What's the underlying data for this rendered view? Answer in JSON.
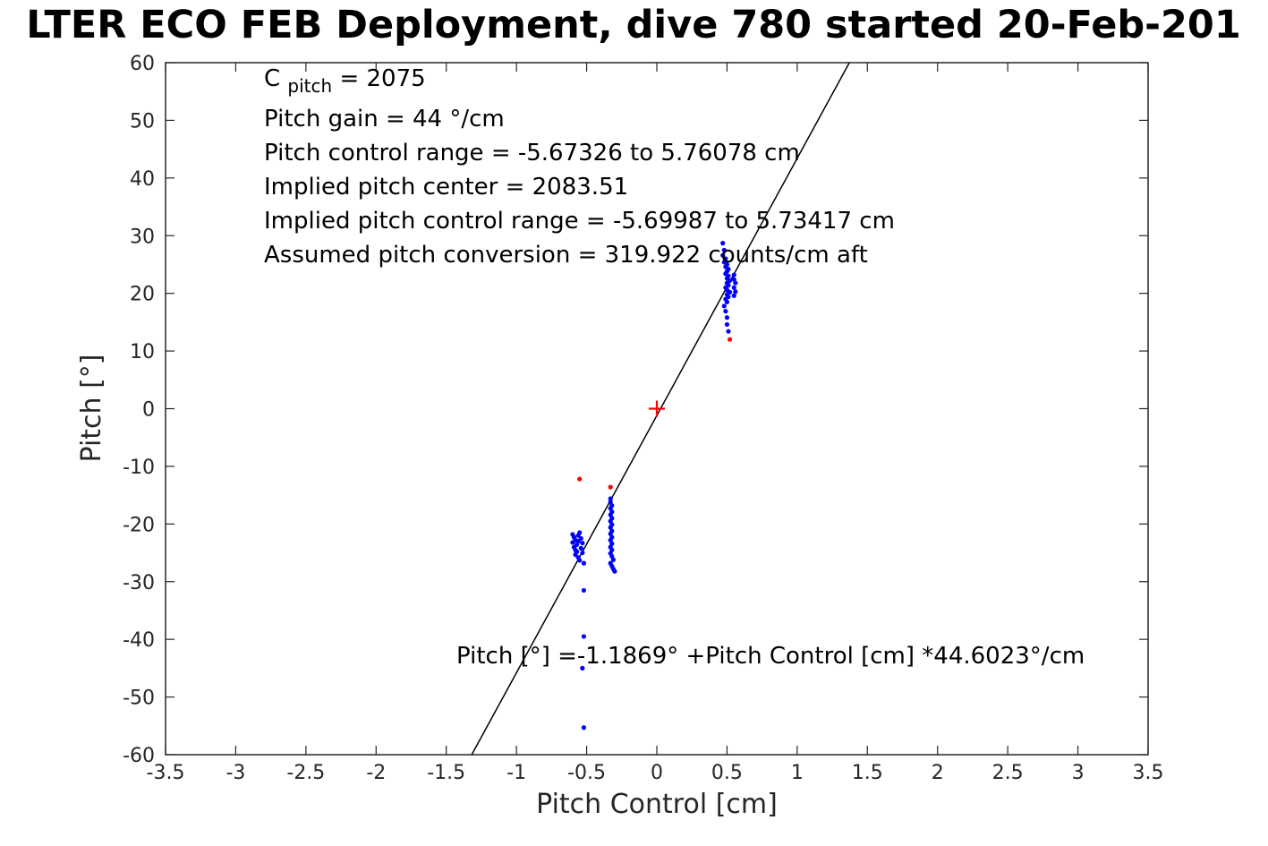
{
  "title": "LTER ECO FEB Deployment, dive 780 started 20-Feb-201",
  "annotations": {
    "cpitch_prefix": "C",
    "cpitch_sub": "pitch",
    "cpitch_rest": " = 2075",
    "lines": [
      "Pitch gain = 44 °/cm",
      "Pitch control range = -5.67326 to 5.76078 cm",
      "Implied pitch center = 2083.51",
      "Implied pitch control range = -5.69987 to 5.73417 cm",
      "Assumed pitch conversion = 319.922 counts/cm aft"
    ],
    "equation": "Pitch [°] =-1.1869° +Pitch Control [cm] *44.6023°/cm"
  },
  "colors": {
    "axis": "#262626",
    "fit_line": "#000000",
    "blue_marker": "#0000ff",
    "red_marker": "#ff0000"
  },
  "chart_data": {
    "type": "scatter",
    "title": "LTER ECO FEB Deployment, dive 780 started 20-Feb-201",
    "xlabel": "Pitch Control [cm]",
    "ylabel": "Pitch [°]",
    "xlim": [
      -3.5,
      3.5
    ],
    "ylim": [
      -60,
      60
    ],
    "grid": false,
    "xticks": [
      -3.5,
      -3,
      -2.5,
      -2,
      -1.5,
      -1,
      -0.5,
      0,
      0.5,
      1,
      1.5,
      2,
      2.5,
      3,
      3.5
    ],
    "xtick_labels": [
      "-3.5",
      "-3",
      "-2.5",
      "-2",
      "-1.5",
      "-1",
      "-0.5",
      "0",
      "0.5",
      "1",
      "1.5",
      "2",
      "2.5",
      "3",
      "3.5"
    ],
    "yticks": [
      -60,
      -50,
      -40,
      -30,
      -20,
      -10,
      0,
      10,
      20,
      30,
      40,
      50,
      60
    ],
    "ytick_labels": [
      "-60",
      "-50",
      "-40",
      "-30",
      "-20",
      "-10",
      "0",
      "10",
      "20",
      "30",
      "40",
      "50",
      "60"
    ],
    "fit_line": {
      "intercept": -1.1869,
      "slope": 44.6023,
      "color": "#000000"
    },
    "series": [
      {
        "name": "pitch-sample-point",
        "color": "#0000ff",
        "marker": "dot",
        "size": 2.6,
        "points": [
          [
            -0.6,
            -21.8
          ],
          [
            -0.59,
            -22.3
          ],
          [
            -0.58,
            -22.8
          ],
          [
            -0.6,
            -23.2
          ],
          [
            -0.57,
            -23.6
          ],
          [
            -0.59,
            -24.0
          ],
          [
            -0.58,
            -24.5
          ],
          [
            -0.56,
            -22.0
          ],
          [
            -0.56,
            -23.0
          ],
          [
            -0.57,
            -24.8
          ],
          [
            -0.58,
            -25.3
          ],
          [
            -0.56,
            -25.8
          ],
          [
            -0.55,
            -21.5
          ],
          [
            -0.55,
            -26.3
          ],
          [
            -0.54,
            -22.5
          ],
          [
            -0.54,
            -24.2
          ],
          [
            -0.53,
            -23.3
          ],
          [
            -0.53,
            -25.0
          ],
          [
            -0.52,
            -26.8
          ],
          [
            -0.52,
            -31.5
          ],
          [
            -0.52,
            -39.5
          ],
          [
            -0.53,
            -45.0
          ],
          [
            -0.52,
            -55.3
          ],
          [
            -0.33,
            -15.6
          ],
          [
            -0.33,
            -16.2
          ],
          [
            -0.32,
            -16.8
          ],
          [
            -0.33,
            -17.3
          ],
          [
            -0.32,
            -17.9
          ],
          [
            -0.33,
            -18.4
          ],
          [
            -0.32,
            -19.0
          ],
          [
            -0.33,
            -19.5
          ],
          [
            -0.32,
            -20.1
          ],
          [
            -0.33,
            -20.6
          ],
          [
            -0.32,
            -21.2
          ],
          [
            -0.33,
            -21.7
          ],
          [
            -0.32,
            -22.3
          ],
          [
            -0.33,
            -22.8
          ],
          [
            -0.32,
            -23.4
          ],
          [
            -0.33,
            -24.0
          ],
          [
            -0.32,
            -24.5
          ],
          [
            -0.33,
            -25.1
          ],
          [
            -0.32,
            -25.6
          ],
          [
            -0.31,
            -26.2
          ],
          [
            -0.33,
            -26.8
          ],
          [
            -0.32,
            -27.3
          ],
          [
            -0.31,
            -27.8
          ],
          [
            -0.3,
            -28.2
          ],
          [
            0.47,
            28.7
          ],
          [
            0.48,
            27.5
          ],
          [
            0.47,
            26.6
          ],
          [
            0.49,
            26.0
          ],
          [
            0.48,
            25.4
          ],
          [
            0.5,
            25.0
          ],
          [
            0.49,
            24.6
          ],
          [
            0.51,
            24.2
          ],
          [
            0.5,
            23.8
          ],
          [
            0.49,
            23.4
          ],
          [
            0.51,
            23.0
          ],
          [
            0.5,
            22.6
          ],
          [
            0.52,
            22.2
          ],
          [
            0.5,
            21.8
          ],
          [
            0.51,
            21.4
          ],
          [
            0.49,
            21.0
          ],
          [
            0.5,
            20.6
          ],
          [
            0.52,
            20.2
          ],
          [
            0.5,
            19.8
          ],
          [
            0.51,
            19.4
          ],
          [
            0.49,
            19.0
          ],
          [
            0.5,
            18.5
          ],
          [
            0.48,
            17.8
          ],
          [
            0.49,
            16.9
          ],
          [
            0.5,
            15.8
          ],
          [
            0.5,
            14.6
          ],
          [
            0.51,
            13.4
          ],
          [
            0.55,
            23.2
          ],
          [
            0.55,
            22.4
          ],
          [
            0.56,
            21.8
          ],
          [
            0.55,
            21.0
          ],
          [
            0.56,
            20.3
          ],
          [
            0.55,
            19.6
          ]
        ]
      },
      {
        "name": "flagged-sample-point",
        "color": "#ff0000",
        "marker": "dot",
        "size": 2.6,
        "points": [
          [
            -0.55,
            -12.2
          ],
          [
            -0.33,
            -13.6
          ],
          [
            0.52,
            12.0
          ]
        ]
      },
      {
        "name": "origin-marker",
        "color": "#ff0000",
        "marker": "plus",
        "size": 9,
        "points": [
          [
            0,
            0
          ]
        ]
      }
    ]
  }
}
